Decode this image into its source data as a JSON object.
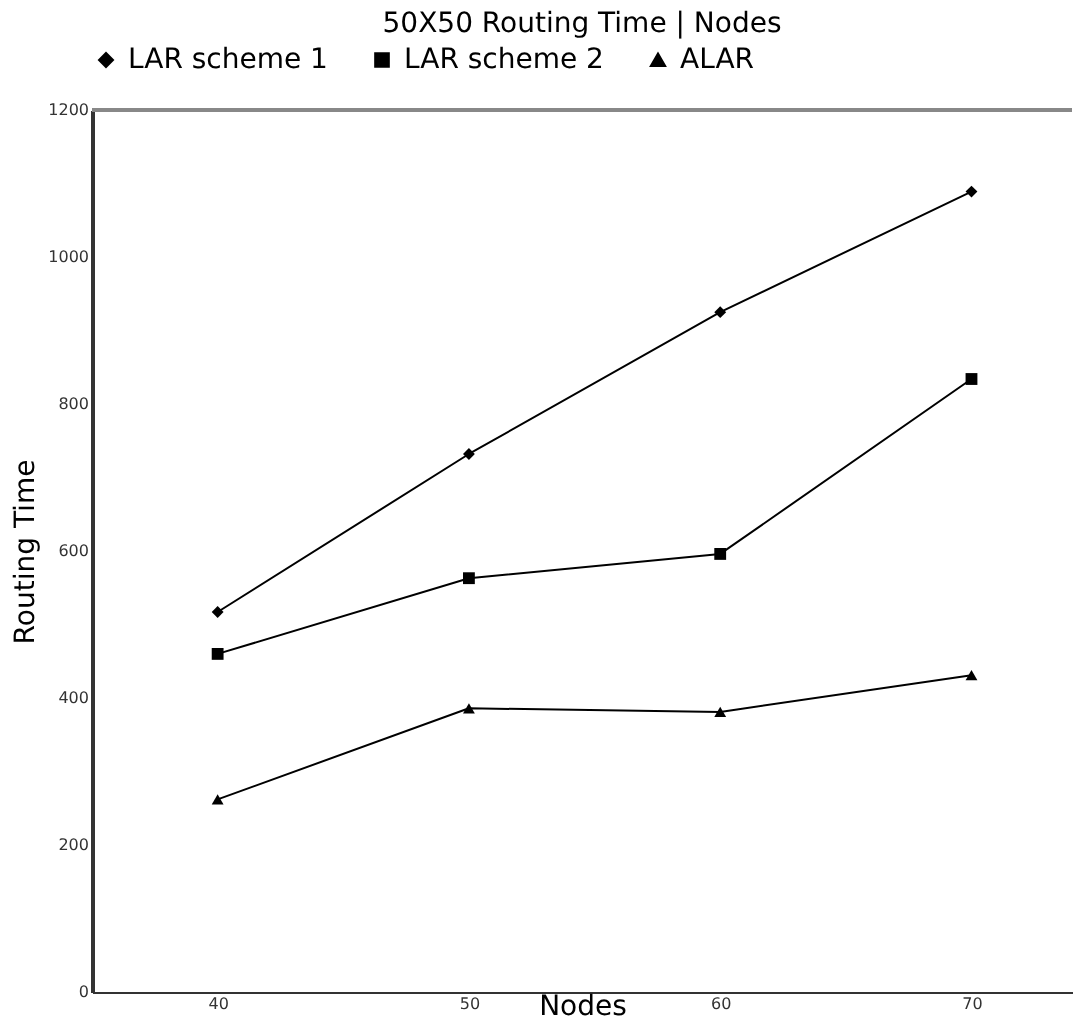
{
  "chart_data": {
    "type": "line",
    "title": "50X50 Routing Time | Nodes",
    "xlabel": "Nodes",
    "ylabel": "Routing Time",
    "x": [
      40,
      50,
      60,
      70
    ],
    "series": [
      {
        "name": "LAR scheme 1",
        "color": "#000000",
        "marker": "diamond",
        "values": [
          517,
          732,
          925,
          1089
        ]
      },
      {
        "name": "LAR scheme 2",
        "color": "#000000",
        "marker": "square",
        "values": [
          460,
          563,
          596,
          834
        ]
      },
      {
        "name": "ALAR",
        "color": "#000000",
        "marker": "triangle",
        "values": [
          262,
          386,
          381,
          431
        ]
      }
    ],
    "xlim": [
      35,
      74
    ],
    "xticks": [
      40,
      50,
      60,
      70
    ],
    "ylim": [
      0,
      1200
    ],
    "yticks": [
      0,
      200,
      400,
      600,
      800,
      1000,
      1200
    ],
    "grid": false,
    "legend": "top",
    "line_style": "solid"
  }
}
